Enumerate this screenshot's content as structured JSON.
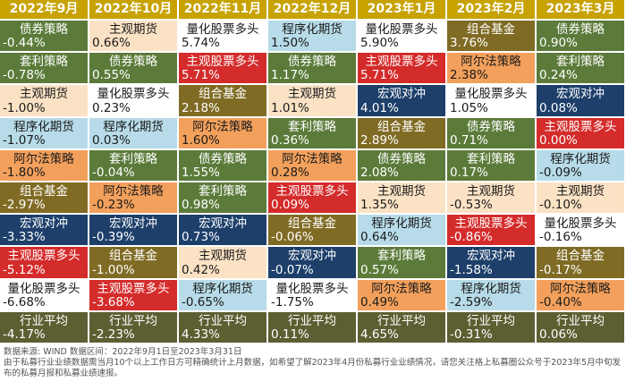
{
  "chart_data": {
    "type": "table",
    "columns": [
      "2022年9月",
      "2022年10月",
      "2022年11月",
      "2022年12月",
      "2023年1月",
      "2023年2月",
      "2023年3月"
    ],
    "rows": [
      [
        {
          "name": "债券策略",
          "value": "-0.44%"
        },
        {
          "name": "主观期货",
          "value": "0.66%"
        },
        {
          "name": "量化股票多头",
          "value": "5.74%"
        },
        {
          "name": "程序化期货",
          "value": "1.50%"
        },
        {
          "name": "量化股票多头",
          "value": "5.90%"
        },
        {
          "name": "组合基金",
          "value": "3.76%"
        },
        {
          "name": "债券策略",
          "value": "0.90%"
        }
      ],
      [
        {
          "name": "套利策略",
          "value": "-0.78%"
        },
        {
          "name": "债券策略",
          "value": "0.55%"
        },
        {
          "name": "主观股票多头",
          "value": "5.71%"
        },
        {
          "name": "债券策略",
          "value": "1.17%"
        },
        {
          "name": "主观股票多头",
          "value": "5.71%"
        },
        {
          "name": "阿尔法策略",
          "value": "2.38%"
        },
        {
          "name": "套利策略",
          "value": "0.24%"
        }
      ],
      [
        {
          "name": "主观期货",
          "value": "-1.00%"
        },
        {
          "name": "量化股票多头",
          "value": "0.23%"
        },
        {
          "name": "组合基金",
          "value": "2.18%"
        },
        {
          "name": "主观期货",
          "value": "1.01%"
        },
        {
          "name": "宏观对冲",
          "value": "4.01%"
        },
        {
          "name": "量化股票多头",
          "value": "1.05%"
        },
        {
          "name": "宏观对冲",
          "value": "0.08%"
        }
      ],
      [
        {
          "name": "程序化期货",
          "value": "-1.07%"
        },
        {
          "name": "程序化期货",
          "value": "0.03%"
        },
        {
          "name": "阿尔法策略",
          "value": "1.60%"
        },
        {
          "name": "套利策略",
          "value": "0.36%"
        },
        {
          "name": "组合基金",
          "value": "2.89%"
        },
        {
          "name": "债券策略",
          "value": "0.71%"
        },
        {
          "name": "主观股票多头",
          "value": "0.00%"
        }
      ],
      [
        {
          "name": "阿尔法策略",
          "value": "-1.80%"
        },
        {
          "name": "套利策略",
          "value": "-0.04%"
        },
        {
          "name": "债券策略",
          "value": "1.55%"
        },
        {
          "name": "阿尔法策略",
          "value": "0.28%"
        },
        {
          "name": "债券策略",
          "value": "2.08%"
        },
        {
          "name": "套利策略",
          "value": "0.17%"
        },
        {
          "name": "程序化期货",
          "value": "-0.09%"
        }
      ],
      [
        {
          "name": "组合基金",
          "value": "-2.97%"
        },
        {
          "name": "阿尔法策略",
          "value": "-0.23%"
        },
        {
          "name": "套利策略",
          "value": "0.98%"
        },
        {
          "name": "主观股票多头",
          "value": "0.09%"
        },
        {
          "name": "主观期货",
          "value": "1.35%"
        },
        {
          "name": "主观期货",
          "value": "-0.53%"
        },
        {
          "name": "主观期货",
          "value": "-0.10%"
        }
      ],
      [
        {
          "name": "宏观对冲",
          "value": "-3.33%"
        },
        {
          "name": "宏观对冲",
          "value": "-0.39%"
        },
        {
          "name": "宏观对冲",
          "value": "0.73%"
        },
        {
          "name": "组合基金",
          "value": "-0.06%"
        },
        {
          "name": "程序化期货",
          "value": "0.64%"
        },
        {
          "name": "主观股票多头",
          "value": "-0.86%"
        },
        {
          "name": "量化股票多头",
          "value": "-0.16%"
        }
      ],
      [
        {
          "name": "主观股票多头",
          "value": "-5.12%"
        },
        {
          "name": "组合基金",
          "value": "-1.00%"
        },
        {
          "name": "主观期货",
          "value": "0.42%"
        },
        {
          "name": "宏观对冲",
          "value": "-0.07%"
        },
        {
          "name": "套利策略",
          "value": "0.57%"
        },
        {
          "name": "宏观对冲",
          "value": "-1.58%"
        },
        {
          "name": "组合基金",
          "value": "-0.17%"
        }
      ],
      [
        {
          "name": "量化股票多头",
          "value": "-6.68%"
        },
        {
          "name": "主观股票多头",
          "value": "-3.68%"
        },
        {
          "name": "程序化期货",
          "value": "-0.65%"
        },
        {
          "name": "量化股票多头",
          "value": "-1.75%"
        },
        {
          "name": "阿尔法策略",
          "value": "0.49%"
        },
        {
          "name": "程序化期货",
          "value": "-2.59%"
        },
        {
          "name": "阿尔法策略",
          "value": "-0.40%"
        }
      ],
      [
        {
          "name": "行业平均",
          "value": "-4.17%"
        },
        {
          "name": "行业平均",
          "value": "-2.23%"
        },
        {
          "name": "行业平均",
          "value": "4.33%"
        },
        {
          "name": "行业平均",
          "value": "0.11%"
        },
        {
          "name": "行业平均",
          "value": "4.65%"
        },
        {
          "name": "行业平均",
          "value": "-0.31%"
        },
        {
          "name": "行业平均",
          "value": "0.06%"
        }
      ]
    ],
    "strategy_colors": {
      "债券策略": "#5c7b3a",
      "套利策略": "#5c7b3a",
      "主观期货": "#fbe2c5",
      "量化股票多头": "#ffffff",
      "程序化期货": "#b7dbe8",
      "阿尔法策略": "#f3a05c",
      "组合基金": "#806b24",
      "主观股票多头": "#d42b2b",
      "宏观对冲": "#1d3f6a",
      "行业平均": "#5e5e33"
    },
    "header_color": "#c7a200",
    "grid_color": "#ffffff"
  },
  "footer": {
    "source": "数据来源: WIND    数据区间：2022年9月1日至2023年3月31日",
    "note": "由于私募行业业绩数据需当月10个以上工作日方可精确统计上月数据，如希望了解2023年4月份私募行业业绩情况，请您关注格上私募圈公众号于2023年5月中旬发布的私募月报和私募业绩速报。"
  }
}
